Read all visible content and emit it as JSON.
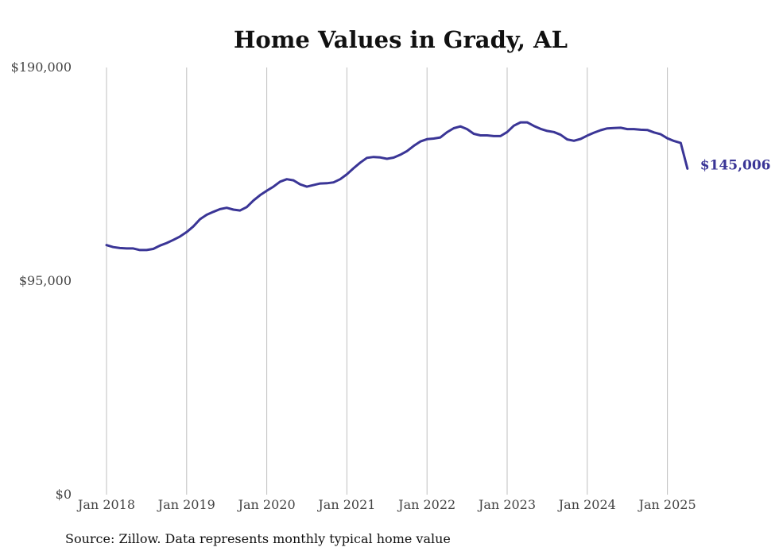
{
  "chart_data": {
    "type": "line",
    "title": "Home Values in Grady, AL",
    "xlabel": "",
    "ylabel": "",
    "ylim": [
      0,
      190000
    ],
    "y_ticks": [
      {
        "value": 0,
        "label": "$0"
      },
      {
        "value": 95000,
        "label": "$95,000"
      },
      {
        "value": 190000,
        "label": "$190,000"
      }
    ],
    "x_ticks": [
      {
        "date": "2018-01",
        "label": "Jan 2018"
      },
      {
        "date": "2019-01",
        "label": "Jan 2019"
      },
      {
        "date": "2020-01",
        "label": "Jan 2020"
      },
      {
        "date": "2021-01",
        "label": "Jan 2021"
      },
      {
        "date": "2022-01",
        "label": "Jan 2022"
      },
      {
        "date": "2023-01",
        "label": "Jan 2023"
      },
      {
        "date": "2024-01",
        "label": "Jan 2024"
      },
      {
        "date": "2025-01",
        "label": "Jan 2025"
      }
    ],
    "grid": {
      "vertical": true,
      "horizontal": false
    },
    "legend": "none",
    "series": [
      {
        "color": "#3a3596",
        "x": [
          "2018-01",
          "2018-02",
          "2018-03",
          "2018-04",
          "2018-05",
          "2018-06",
          "2018-07",
          "2018-08",
          "2018-09",
          "2018-10",
          "2018-11",
          "2018-12",
          "2019-01",
          "2019-02",
          "2019-03",
          "2019-04",
          "2019-05",
          "2019-06",
          "2019-07",
          "2019-08",
          "2019-09",
          "2019-10",
          "2019-11",
          "2019-12",
          "2020-01",
          "2020-02",
          "2020-03",
          "2020-04",
          "2020-05",
          "2020-06",
          "2020-07",
          "2020-08",
          "2020-09",
          "2020-10",
          "2020-11",
          "2020-12",
          "2021-01",
          "2021-02",
          "2021-03",
          "2021-04",
          "2021-05",
          "2021-06",
          "2021-07",
          "2021-08",
          "2021-09",
          "2021-10",
          "2021-11",
          "2021-12",
          "2022-01",
          "2022-02",
          "2022-03",
          "2022-04",
          "2022-05",
          "2022-06",
          "2022-07",
          "2022-08",
          "2022-09",
          "2022-10",
          "2022-11",
          "2022-12",
          "2023-01",
          "2023-02",
          "2023-03",
          "2023-04",
          "2023-05",
          "2023-06",
          "2023-07",
          "2023-08",
          "2023-09",
          "2023-10",
          "2023-11",
          "2023-12",
          "2024-01",
          "2024-02",
          "2024-03",
          "2024-04",
          "2024-05",
          "2024-06",
          "2024-07",
          "2024-08",
          "2024-09",
          "2024-10",
          "2024-11",
          "2024-12",
          "2025-01",
          "2025-02",
          "2025-03",
          "2025-04"
        ],
        "values": [
          111000,
          110100,
          109700,
          109500,
          109500,
          108800,
          108800,
          109300,
          110800,
          111900,
          113300,
          114800,
          116800,
          119300,
          122500,
          124500,
          125800,
          127000,
          127600,
          126800,
          126400,
          127900,
          130800,
          133200,
          135200,
          137000,
          139200,
          140300,
          139800,
          138000,
          137000,
          137700,
          138400,
          138500,
          138900,
          140300,
          142500,
          145200,
          147700,
          149800,
          150200,
          150000,
          149400,
          149900,
          151200,
          152800,
          155100,
          157100,
          158100,
          158400,
          158900,
          161200,
          163000,
          163800,
          162600,
          160500,
          159800,
          159800,
          159500,
          159500,
          161300,
          164100,
          165600,
          165600,
          164000,
          162700,
          161800,
          161300,
          160100,
          158000,
          157400,
          158200,
          159700,
          161000,
          162100,
          162900,
          163100,
          163200,
          162600,
          162600,
          162300,
          162200,
          161100,
          160300,
          158500,
          157300,
          156400,
          145006
        ],
        "end_label": "$145,006"
      }
    ]
  },
  "source_note": "Source: Zillow. Data represents monthly typical home value"
}
